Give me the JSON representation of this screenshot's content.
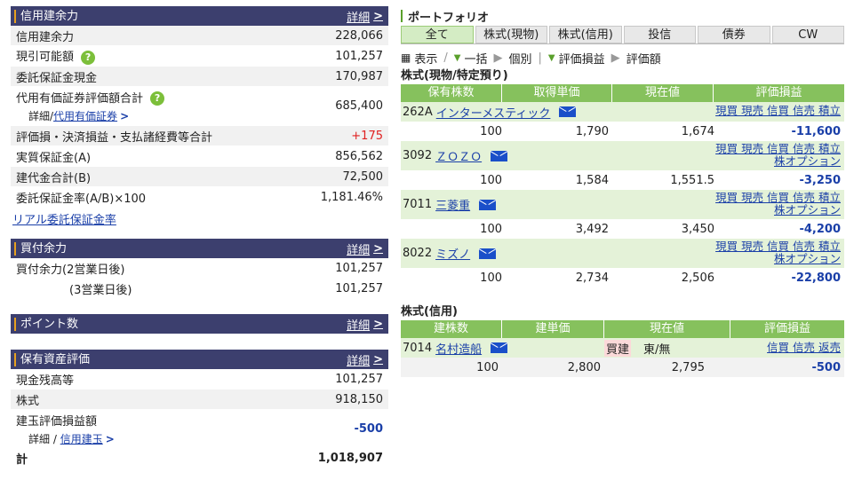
{
  "credit_capacity": {
    "title": "信用建余力",
    "detail": "詳細",
    "rows": [
      {
        "label": "信用建余力",
        "value": "228,066"
      },
      {
        "label": "現引可能額",
        "value": "101,257",
        "help": true
      },
      {
        "label": "委託保証金現金",
        "value": "170,987"
      },
      {
        "label": "代用有価証券評価額合計",
        "value": "685,400",
        "help": true,
        "sub_prefix": "詳細/",
        "sub_link": "代用有価証券"
      },
      {
        "label": "評価損・決済損益・支払諸経費等合計",
        "value": "+175",
        "red": true
      },
      {
        "label": "実質保証金(A)",
        "value": "856,562"
      },
      {
        "label": "建代金合計(B)",
        "value": "72,500"
      },
      {
        "label": "委託保証金率(A/B)×100",
        "value": "1,181.46%"
      }
    ],
    "link": "リアル委託保証金率"
  },
  "buying_power": {
    "title": "買付余力",
    "detail": "詳細",
    "rows": [
      {
        "label": "買付余力(2営業日後)",
        "value": "101,257"
      },
      {
        "label": "(3営業日後)",
        "value": "101,257"
      }
    ]
  },
  "points": {
    "title": "ポイント数",
    "detail": "詳細"
  },
  "assets": {
    "title": "保有資産評価",
    "detail": "詳細",
    "rows": [
      {
        "label": "現金残高等",
        "value": "101,257"
      },
      {
        "label": "株式",
        "value": "918,150"
      },
      {
        "label": "建玉評価損益額",
        "value": "-500",
        "sub_prefix": "詳細 / ",
        "sub_link": "信用建玉"
      }
    ],
    "total_label": "計",
    "total_value": "1,018,907"
  },
  "portfolio": {
    "title": "ポートフォリオ",
    "tabs": [
      "全て",
      "株式(現物)",
      "株式(信用)",
      "投信",
      "債券",
      "CW"
    ],
    "controls": {
      "show": "表示",
      "sep": "/",
      "bulk": "一括",
      "individual": "個別",
      "pnl": "評価損益",
      "val": "評価額"
    },
    "cash_title": "株式(現物/特定預り)",
    "cash_headers": [
      "保有株数",
      "取得単価",
      "現在値",
      "評価損益"
    ],
    "cash_stocks": [
      {
        "code": "262A",
        "name": "インターメスティック",
        "links1": "現買 現売 信買 信売 積立",
        "links2": "",
        "qty": "100",
        "cost": "1,790",
        "price": "1,674",
        "pnl": "-11,600"
      },
      {
        "code": "3092",
        "name": "ＺＯＺＯ",
        "links1": "現買 現売 信買 信売 積立",
        "links2": "株オプション",
        "qty": "100",
        "cost": "1,584",
        "price": "1,551.5",
        "pnl": "-3,250"
      },
      {
        "code": "7011",
        "name": "三菱重",
        "links1": "現買 現売 信買 信売 積立",
        "links2": "株オプション",
        "qty": "100",
        "cost": "3,492",
        "price": "3,450",
        "pnl": "-4,200"
      },
      {
        "code": "8022",
        "name": "ミズノ",
        "links1": "現買 現売 信買 信売 積立",
        "links2": "株オプション",
        "qty": "100",
        "cost": "2,734",
        "price": "2,506",
        "pnl": "-22,800"
      }
    ],
    "margin_title": "株式(信用)",
    "margin_headers": [
      "建株数",
      "建単価",
      "現在値",
      "評価損益"
    ],
    "margin_stocks": [
      {
        "code": "7014",
        "name": "名村造船",
        "side": "買建",
        "market": "東/無",
        "links": "信買 信売 返売",
        "qty": "100",
        "cost": "2,800",
        "price": "2,795",
        "pnl": "-500"
      }
    ]
  },
  "colors": {
    "header_bg": "#3c3f6e",
    "accent_green": "#86c15d",
    "row_green": "#e4f2d8",
    "negative": "#1a3fa8",
    "positive": "#e02020"
  }
}
